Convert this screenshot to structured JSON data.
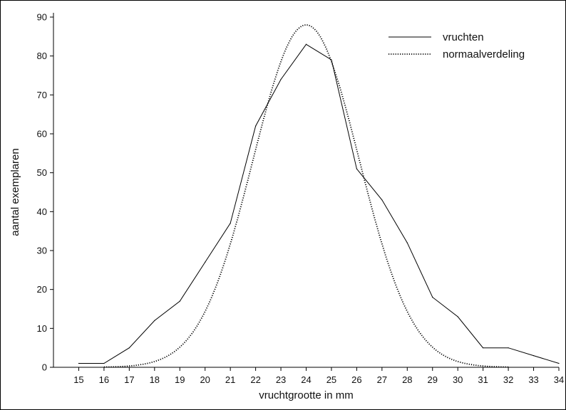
{
  "chart_data": {
    "type": "line",
    "xlabel": "vruchtgrootte in mm",
    "ylabel": "aantal exemplaren",
    "xlim": [
      14,
      34
    ],
    "ylim": [
      0,
      90
    ],
    "x_ticks": [
      "15",
      "16",
      "17",
      "18",
      "19",
      "20",
      "21",
      "22",
      "23",
      "24",
      "25",
      "26",
      "27",
      "28",
      "29",
      "30",
      "31",
      "32",
      "33",
      "34"
    ],
    "y_ticks": [
      "0",
      "10",
      "20",
      "30",
      "40",
      "50",
      "60",
      "70",
      "80",
      "90"
    ],
    "grid": false,
    "legend_position": "top-right",
    "series": [
      {
        "name": "vruchten",
        "style": "solid",
        "color": "#000000",
        "x": [
          15,
          16,
          17,
          18,
          19,
          20,
          21,
          22,
          23,
          24,
          25,
          26,
          27,
          28,
          29,
          30,
          31,
          32,
          33,
          34
        ],
        "y": [
          1,
          1,
          5,
          12,
          17,
          27,
          37,
          62,
          74,
          83,
          79,
          51,
          43,
          32,
          18,
          13,
          5,
          5,
          3,
          1
        ]
      },
      {
        "name": "normaalverdeling",
        "style": "dotted",
        "color": "#000000",
        "mean": 24,
        "sd": 2.1,
        "peak": 88,
        "x_range": [
          16,
          32
        ]
      }
    ]
  }
}
